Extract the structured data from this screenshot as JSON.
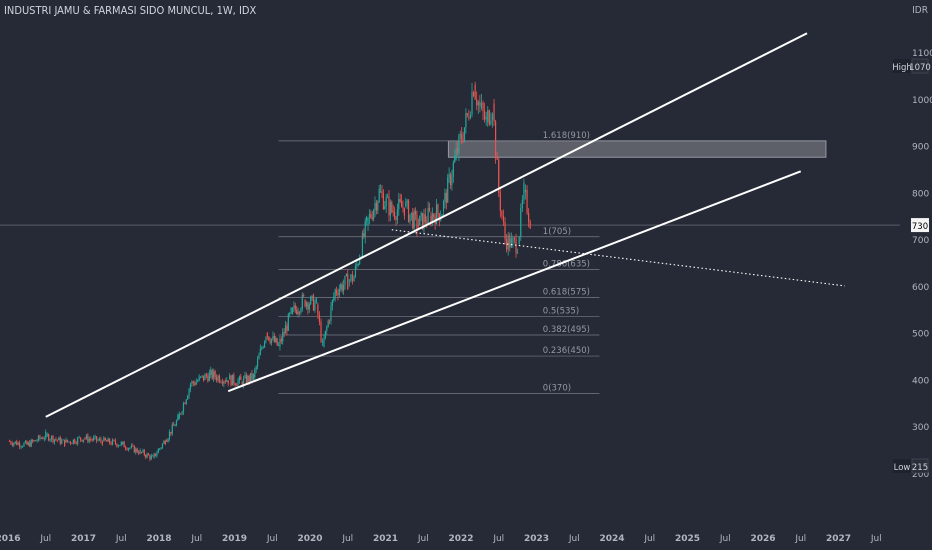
{
  "header": {
    "symbol_line": "INDUSTRI JAMU & FARMASI SIDO MUNCUL, 1W, IDX",
    "currency": "IDR"
  },
  "chart_data": {
    "type": "line",
    "title": "INDUSTRI JAMU & FARMASI SIDO MUNCUL, 1W, IDX",
    "x_ticks": [
      "2016",
      "Jul",
      "2017",
      "Jul",
      "2018",
      "Jul",
      "2019",
      "Jul",
      "2020",
      "Jul",
      "2021",
      "Jul",
      "2022",
      "Jul",
      "2023",
      "Jul",
      "2024",
      "Jul",
      "2025",
      "Jul",
      "2026",
      "Jul",
      "2027",
      "Jul"
    ],
    "y_ticks": [
      1100,
      1000,
      900,
      800,
      700,
      600,
      500,
      400,
      300,
      200
    ],
    "ylim": [
      185,
      1120
    ],
    "x_start": "2016-01-01",
    "grid": false,
    "price_series": {
      "name": "SIDO weekly close",
      "dates": [
        "2016-01",
        "2016-04",
        "2016-07",
        "2016-10",
        "2017-01",
        "2017-04",
        "2017-07",
        "2017-10",
        "2017-12",
        "2018-02",
        "2018-04",
        "2018-06",
        "2018-09",
        "2018-12",
        "2019-02",
        "2019-04",
        "2019-06",
        "2019-08",
        "2019-10",
        "2019-12",
        "2020-02",
        "2020-03",
        "2020-05",
        "2020-07",
        "2020-08",
        "2020-10",
        "2020-12",
        "2021-02",
        "2021-04",
        "2021-06",
        "2021-08",
        "2021-10",
        "2021-12",
        "2022-02",
        "2022-03",
        "2022-04",
        "2022-05",
        "2022-06",
        "2022-07",
        "2022-08",
        "2022-09",
        "2022-10",
        "2022-11",
        "2022-12"
      ],
      "values": [
        268,
        260,
        280,
        265,
        275,
        268,
        262,
        245,
        232,
        270,
        315,
        390,
        410,
        400,
        395,
        405,
        500,
        470,
        540,
        570,
        560,
        470,
        590,
        610,
        620,
        730,
        800,
        760,
        770,
        730,
        750,
        760,
        870,
        960,
        1030,
        980,
        950,
        990,
        800,
        700,
        690,
        690,
        800,
        740
      ]
    },
    "fib_levels": [
      {
        "label": "1.618(910)",
        "value": 910
      },
      {
        "label": "1(705)",
        "value": 705
      },
      {
        "label": "0.786(635)",
        "value": 635
      },
      {
        "label": "0.618(575)",
        "value": 575
      },
      {
        "label": "0.5(535)",
        "value": 535
      },
      {
        "label": "0.382(495)",
        "value": 495
      },
      {
        "label": "0.236(450)",
        "value": 450
      },
      {
        "label": "0(370)",
        "value": 370
      }
    ],
    "zone": {
      "from_date": "2021-11",
      "to_date": "2026-11",
      "low": 875,
      "high": 910
    },
    "trendlines": [
      {
        "from": [
          "2016-07",
          320
        ],
        "to": [
          "2026-08",
          1140
        ],
        "style": "solid"
      },
      {
        "from": [
          "2018-12",
          375
        ],
        "to": [
          "2026-07",
          845
        ],
        "style": "solid"
      },
      {
        "from": [
          "2021-02",
          720
        ],
        "to": [
          "2027-02",
          600
        ],
        "style": "dotted"
      }
    ],
    "current_price": 730,
    "price_tags": [
      {
        "text": "High",
        "value": "1070",
        "price": 1070
      },
      {
        "text": "",
        "value": "730",
        "price": 730
      },
      {
        "text": "Low",
        "value": "215",
        "price": 215
      }
    ]
  },
  "colors": {
    "background": "#262a36",
    "up": "#26a69a",
    "down": "#ef5350",
    "line": "#ffffff",
    "text": "#d1d4dc",
    "axis": "#b2b5be"
  }
}
